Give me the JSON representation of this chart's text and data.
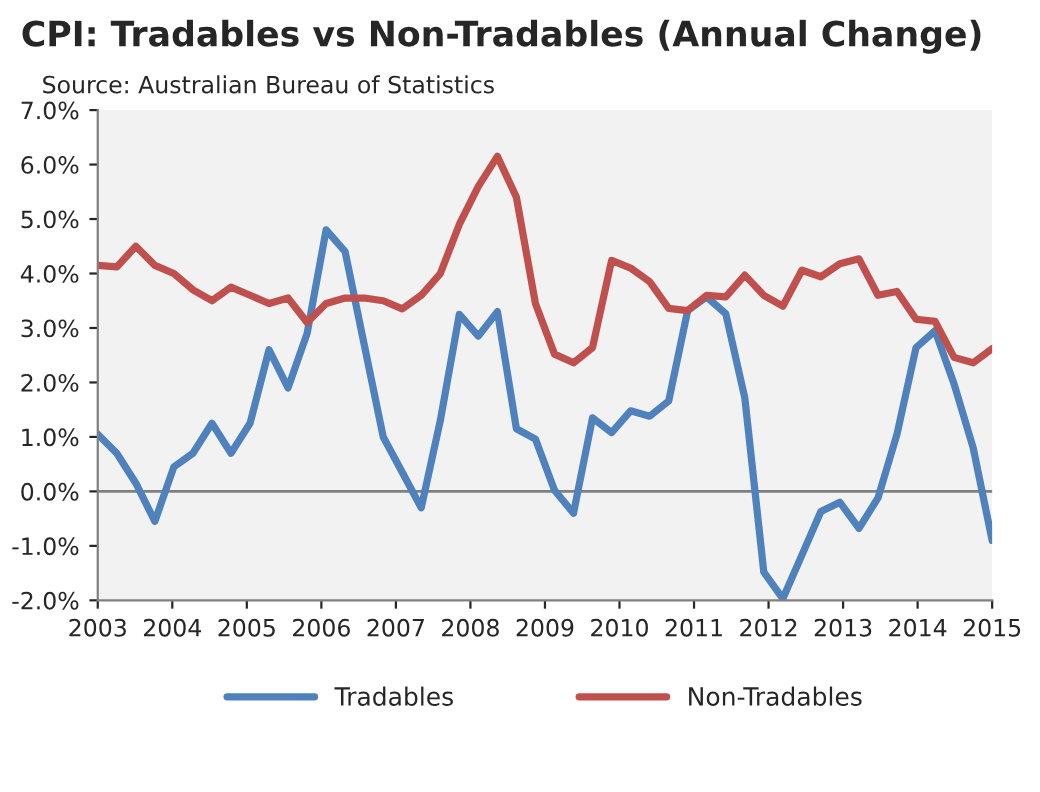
{
  "chart_data": {
    "type": "line",
    "title": "CPI: Tradables vs Non-Tradables (Annual Change)",
    "subtitle": "Source: Australian Bureau of Statistics",
    "x": [
      2003.0,
      2003.255,
      2003.511,
      2003.766,
      2004.021,
      2004.277,
      2004.532,
      2004.787,
      2005.043,
      2005.298,
      2005.553,
      2005.809,
      2006.064,
      2006.319,
      2006.574,
      2006.83,
      2007.085,
      2007.34,
      2007.596,
      2007.851,
      2008.106,
      2008.362,
      2008.617,
      2008.872,
      2009.128,
      2009.383,
      2009.638,
      2009.894,
      2010.149,
      2010.404,
      2010.66,
      2010.915,
      2011.17,
      2011.426,
      2011.681,
      2011.936,
      2012.191,
      2012.447,
      2012.702,
      2012.957,
      2013.213,
      2013.468,
      2013.723,
      2013.979,
      2014.234,
      2014.489,
      2014.745,
      2015.0
    ],
    "series": [
      {
        "name": "Tradables",
        "color": "#4f81bd",
        "values": [
          1.05,
          0.7,
          0.15,
          -0.55,
          0.45,
          0.7,
          1.25,
          0.7,
          1.25,
          2.6,
          1.9,
          2.9,
          4.8,
          4.4,
          2.7,
          1.0,
          0.35,
          -0.3,
          1.3,
          3.25,
          2.85,
          3.3,
          1.15,
          0.96,
          0.02,
          -0.4,
          1.35,
          1.08,
          1.48,
          1.38,
          1.66,
          3.32,
          3.57,
          3.26,
          1.72,
          -1.48,
          -1.97,
          -1.17,
          -0.37,
          -0.2,
          -0.68,
          -0.12,
          1.05,
          2.64,
          2.95,
          1.97,
          0.8,
          -0.9
        ]
      },
      {
        "name": "Non-Tradables",
        "color": "#c0504d",
        "values": [
          4.15,
          4.12,
          4.5,
          4.15,
          4.0,
          3.7,
          3.5,
          3.75,
          3.6,
          3.45,
          3.55,
          3.1,
          3.45,
          3.55,
          3.55,
          3.5,
          3.35,
          3.6,
          4.0,
          4.9,
          5.6,
          6.15,
          5.4,
          3.45,
          2.52,
          2.36,
          2.64,
          4.24,
          4.1,
          3.85,
          3.36,
          3.32,
          3.6,
          3.57,
          3.97,
          3.6,
          3.4,
          4.06,
          3.94,
          4.18,
          4.27,
          3.6,
          3.67,
          3.16,
          3.12,
          2.46,
          2.36,
          2.62
        ]
      }
    ],
    "xlim": [
      2003,
      2015
    ],
    "xticks": [
      2003,
      2004,
      2005,
      2006,
      2007,
      2008,
      2009,
      2010,
      2011,
      2012,
      2013,
      2014,
      2015
    ],
    "ylim": [
      -2,
      7
    ],
    "yticks": [
      {
        "value": -2,
        "label": "-2.0%"
      },
      {
        "value": -1,
        "label": "-1.0%"
      },
      {
        "value": 0,
        "label": "0.0%"
      },
      {
        "value": 1,
        "label": "1.0%"
      },
      {
        "value": 2,
        "label": "2.0%"
      },
      {
        "value": 3,
        "label": "3.0%"
      },
      {
        "value": 4,
        "label": "4.0%"
      },
      {
        "value": 5,
        "label": "5.0%"
      },
      {
        "value": 6,
        "label": "6.0%"
      },
      {
        "value": 7,
        "label": "7.0%"
      }
    ],
    "ref_lines": [
      {
        "axis": "y",
        "value": 0,
        "color": "#808080"
      }
    ],
    "grid": false,
    "legend": "bottom",
    "marker": "none",
    "line_style": "solid"
  }
}
